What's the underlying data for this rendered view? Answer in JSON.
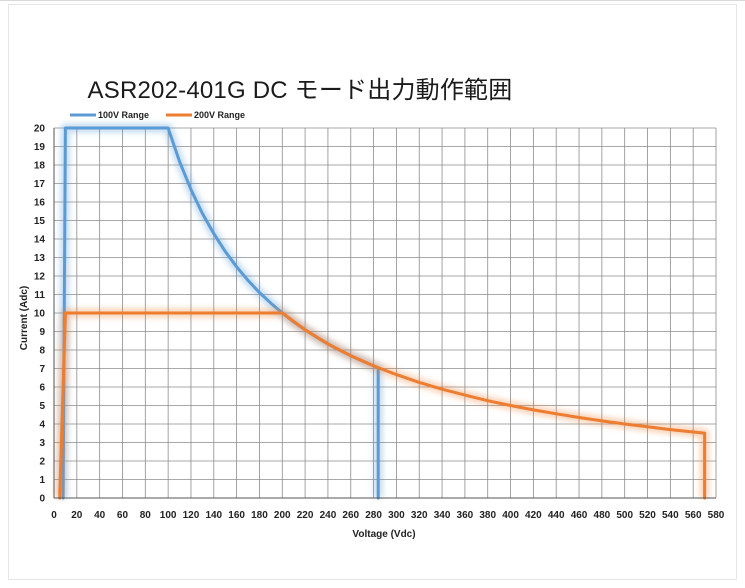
{
  "chart_data": {
    "type": "line",
    "title": "ASR202-401G DC モード出力動作範囲",
    "xlabel": "Voltage (Vdc)",
    "ylabel": "Current (Adc)",
    "xlim": [
      0,
      580
    ],
    "ylim": [
      0,
      20
    ],
    "xticks": [
      0,
      20,
      40,
      60,
      80,
      100,
      120,
      140,
      160,
      180,
      200,
      220,
      240,
      260,
      280,
      300,
      320,
      340,
      360,
      380,
      400,
      420,
      440,
      460,
      480,
      500,
      520,
      540,
      560,
      580
    ],
    "yticks": [
      0,
      1,
      2,
      3,
      4,
      5,
      6,
      7,
      8,
      9,
      10,
      11,
      12,
      13,
      14,
      15,
      16,
      17,
      18,
      19,
      20
    ],
    "grid": true,
    "legend_position": "top-left",
    "series": [
      {
        "name": "100V Range",
        "color": "#5b9bd5",
        "x": [
          8,
          10,
          100,
          110,
          120,
          130,
          140,
          150,
          160,
          170,
          180,
          190,
          200,
          210,
          220,
          230,
          240,
          250,
          260,
          270,
          280,
          284,
          284
        ],
        "y": [
          0,
          20,
          20,
          18.18,
          16.67,
          15.38,
          14.29,
          13.33,
          12.5,
          11.76,
          11.11,
          10.53,
          10,
          9.52,
          9.09,
          8.7,
          8.33,
          8,
          7.69,
          7.41,
          7.14,
          7.04,
          0
        ]
      },
      {
        "name": "200V Range",
        "color": "#ed7d31",
        "x": [
          5,
          10,
          200,
          220,
          240,
          260,
          280,
          300,
          320,
          340,
          360,
          380,
          400,
          420,
          440,
          460,
          480,
          500,
          520,
          540,
          560,
          570,
          570
        ],
        "y": [
          0,
          10,
          10,
          9.09,
          8.33,
          7.69,
          7.14,
          6.67,
          6.25,
          5.88,
          5.56,
          5.26,
          5,
          4.76,
          4.55,
          4.35,
          4.17,
          4,
          3.85,
          3.7,
          3.57,
          3.51,
          0
        ]
      }
    ]
  }
}
